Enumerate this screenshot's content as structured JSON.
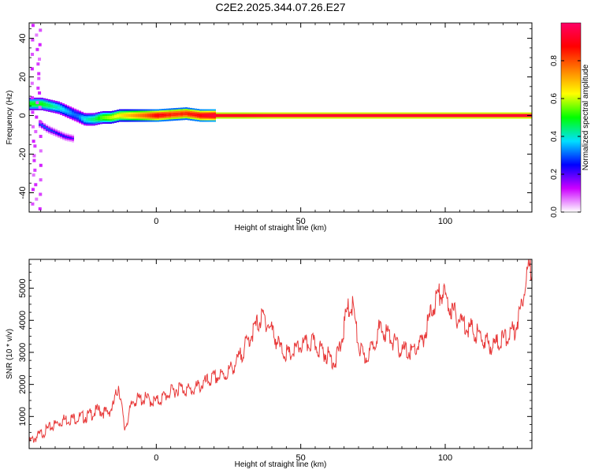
{
  "title": "C2E2.2025.344.07.26.E27",
  "chart_data": [
    {
      "type": "heatmap",
      "xlabel": "Height of straight line (km)",
      "ylabel": "Frequency (Hz)",
      "xlim": [
        -44,
        130
      ],
      "ylim": [
        -50,
        48
      ],
      "xticks": [
        0,
        50,
        100
      ],
      "yticks": [
        -40,
        -20,
        0,
        20,
        40
      ],
      "colorbar": {
        "label": "Normalized spectral amplitude",
        "ticks": [
          0.0,
          0.2,
          0.4,
          0.6,
          0.8
        ],
        "range": [
          0,
          1
        ],
        "colormap": [
          "#ffffff",
          "#cc00ff",
          "#0000ff",
          "#00e0ff",
          "#00ff00",
          "#ffff00",
          "#ff8000",
          "#ff0000",
          "#ff0066"
        ]
      },
      "ridge": {
        "comment_free": true,
        "x": [
          -40,
          -37,
          -34,
          -31,
          -28,
          -25,
          -22,
          -19,
          -16,
          -13,
          -10,
          -7,
          -4,
          0,
          5,
          10,
          15,
          20,
          30,
          40,
          60,
          80,
          100,
          130
        ],
        "freq": [
          6,
          5,
          4,
          2,
          0,
          -2,
          -2,
          -1,
          -1,
          0,
          0,
          0,
          0,
          0,
          0.5,
          1,
          0,
          0,
          0,
          0,
          0,
          0,
          0,
          0
        ],
        "amp": [
          0.5,
          0.45,
          0.4,
          0.35,
          0.3,
          0.4,
          0.45,
          0.55,
          0.6,
          0.65,
          0.7,
          0.75,
          0.8,
          0.9,
          0.85,
          0.85,
          0.9,
          0.95,
          0.95,
          0.97,
          0.97,
          0.97,
          0.97,
          0.97
        ]
      },
      "branch_low": {
        "x": [
          -41,
          -38,
          -35,
          -32,
          -29
        ],
        "freq": [
          -4,
          -7,
          -9,
          -11,
          -12
        ],
        "amp": [
          0.3,
          0.3,
          0.25,
          0.25,
          0.2
        ]
      }
    },
    {
      "type": "line",
      "xlabel": "Height of straight line (km)",
      "ylabel": "SNR (10 * v/v)",
      "xlim": [
        -44,
        130
      ],
      "ylim": [
        0,
        5900
      ],
      "xticks": [
        0,
        50,
        100
      ],
      "yticks": [
        1000,
        2000,
        3000,
        4000,
        5000
      ],
      "color": "#e83a3a",
      "series": [
        {
          "x": [
            -44,
            -40,
            -36,
            -32,
            -28,
            -24,
            -20,
            -17,
            -15,
            -13,
            -11,
            -8,
            -4,
            0,
            4,
            8,
            12,
            16,
            20,
            24,
            28,
            32,
            35,
            37,
            40,
            43,
            46,
            50,
            54,
            58,
            62,
            64,
            66,
            68,
            70,
            72,
            74,
            77,
            80,
            84,
            88,
            92,
            95,
            97,
            99,
            101,
            104,
            108,
            112,
            116,
            120,
            124,
            126,
            128,
            130
          ],
          "y": [
            200,
            450,
            700,
            900,
            950,
            1000,
            1200,
            1100,
            1300,
            2000,
            600,
            1500,
            1550,
            1450,
            1700,
            1900,
            1800,
            2000,
            2200,
            2300,
            2700,
            3400,
            3900,
            4100,
            3700,
            3100,
            2900,
            3200,
            3300,
            3000,
            2700,
            3300,
            4300,
            4500,
            3200,
            2800,
            3000,
            3700,
            3600,
            3100,
            3000,
            3300,
            4200,
            4700,
            4900,
            4500,
            4100,
            3800,
            3500,
            3200,
            3400,
            3700,
            4300,
            5400,
            5700
          ]
        }
      ]
    }
  ]
}
